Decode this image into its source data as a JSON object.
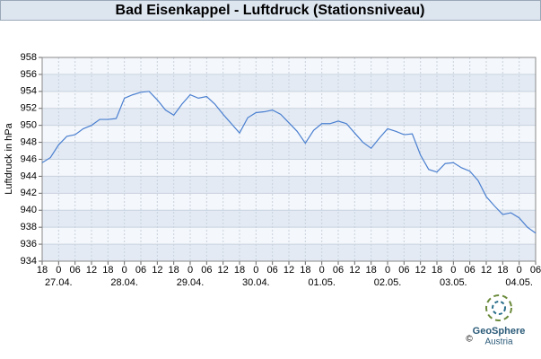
{
  "chart_data": {
    "type": "line",
    "title": "Bad Eisenkappel - Luftdruck (Stationsniveau)",
    "ylabel": "Luftdruck in hPa",
    "logo": {
      "name": "GeoSphere",
      "sub": "Austria",
      "copyright": "©"
    },
    "x": [
      "26.04. 18:00",
      "26.04. 21:00",
      "27.04. 00:00",
      "27.04. 03:00",
      "27.04. 06:00",
      "27.04. 09:00",
      "27.04. 12:00",
      "27.04. 15:00",
      "27.04. 18:00",
      "27.04. 21:00",
      "28.04. 00:00",
      "28.04. 03:00",
      "28.04. 06:00",
      "28.04. 09:00",
      "28.04. 12:00",
      "28.04. 15:00",
      "28.04. 18:00",
      "28.04. 21:00",
      "29.04. 00:00",
      "29.04. 03:00",
      "29.04. 06:00",
      "29.04. 09:00",
      "29.04. 12:00",
      "29.04. 15:00",
      "29.04. 18:00",
      "29.04. 21:00",
      "30.04. 00:00",
      "30.04. 03:00",
      "30.04. 06:00",
      "30.04. 09:00",
      "30.04. 12:00",
      "30.04. 15:00",
      "30.04. 18:00",
      "30.04. 21:00",
      "01.05. 00:00",
      "01.05. 03:00",
      "01.05. 06:00",
      "01.05. 09:00",
      "01.05. 12:00",
      "01.05. 15:00",
      "01.05. 18:00",
      "01.05. 21:00",
      "02.05. 00:00",
      "02.05. 03:00",
      "02.05. 06:00",
      "02.05. 09:00",
      "02.05. 12:00",
      "02.05. 15:00",
      "02.05. 18:00",
      "02.05. 21:00",
      "03.05. 00:00",
      "03.05. 03:00",
      "03.05. 06:00",
      "03.05. 09:00",
      "03.05. 12:00",
      "03.05. 15:00",
      "03.05. 18:00",
      "03.05. 21:00",
      "04.05. 00:00",
      "04.05. 03:00",
      "04.05. 06:00"
    ],
    "series": [
      {
        "name": "Luftdruck",
        "color": "#4a7fd0",
        "values": [
          945.6,
          946.2,
          947.7,
          948.7,
          948.9,
          949.6,
          950.0,
          950.7,
          950.7,
          950.8,
          953.2,
          953.6,
          953.9,
          954.0,
          953.0,
          951.8,
          951.2,
          952.5,
          953.6,
          953.2,
          953.4,
          952.5,
          951.3,
          950.2,
          949.1,
          950.9,
          951.5,
          951.6,
          951.8,
          951.3,
          950.3,
          949.3,
          947.9,
          949.4,
          950.2,
          950.2,
          950.5,
          950.2,
          949.1,
          948.0,
          947.3,
          948.5,
          949.6,
          949.3,
          948.9,
          949.0,
          946.5,
          944.8,
          944.5,
          945.5,
          945.6,
          945.0,
          944.6,
          943.5,
          941.6,
          940.5,
          939.5,
          939.7,
          939.1,
          938.0,
          937.3
        ]
      }
    ],
    "xlim": [
      "26.04. 18:00",
      "04.05. 06:00"
    ],
    "xticks": [
      {
        "value": "26.04. 18:00",
        "label": "18"
      },
      {
        "value": "27.04. 00:00",
        "label": "0"
      },
      {
        "value": "27.04. 06:00",
        "label": "06"
      },
      {
        "value": "27.04. 12:00",
        "label": "12"
      },
      {
        "value": "27.04. 18:00",
        "label": "18"
      },
      {
        "value": "28.04. 00:00",
        "label": "0"
      },
      {
        "value": "28.04. 06:00",
        "label": "06"
      },
      {
        "value": "28.04. 12:00",
        "label": "12"
      },
      {
        "value": "28.04. 18:00",
        "label": "18"
      },
      {
        "value": "29.04. 00:00",
        "label": "0"
      },
      {
        "value": "29.04. 06:00",
        "label": "06"
      },
      {
        "value": "29.04. 12:00",
        "label": "12"
      },
      {
        "value": "29.04. 18:00",
        "label": "18"
      },
      {
        "value": "30.04. 00:00",
        "label": "0"
      },
      {
        "value": "30.04. 06:00",
        "label": "06"
      },
      {
        "value": "30.04. 12:00",
        "label": "12"
      },
      {
        "value": "30.04. 18:00",
        "label": "18"
      },
      {
        "value": "01.05. 00:00",
        "label": "0"
      },
      {
        "value": "01.05. 06:00",
        "label": "06"
      },
      {
        "value": "01.05. 12:00",
        "label": "12"
      },
      {
        "value": "01.05. 18:00",
        "label": "18"
      },
      {
        "value": "02.05. 00:00",
        "label": "0"
      },
      {
        "value": "02.05. 06:00",
        "label": "06"
      },
      {
        "value": "02.05. 12:00",
        "label": "12"
      },
      {
        "value": "02.05. 18:00",
        "label": "18"
      },
      {
        "value": "03.05. 00:00",
        "label": "0"
      },
      {
        "value": "03.05. 06:00",
        "label": "06"
      },
      {
        "value": "03.05. 12:00",
        "label": "12"
      },
      {
        "value": "03.05. 18:00",
        "label": "18"
      },
      {
        "value": "04.05. 00:00",
        "label": "0"
      },
      {
        "value": "04.05. 06:00",
        "label": "06"
      }
    ],
    "date_labels": [
      {
        "value": "27.04. 00:00",
        "label": "27.04."
      },
      {
        "value": "28.04. 00:00",
        "label": "28.04."
      },
      {
        "value": "29.04. 00:00",
        "label": "29.04."
      },
      {
        "value": "30.04. 00:00",
        "label": "30.04."
      },
      {
        "value": "01.05. 00:00",
        "label": "01.05."
      },
      {
        "value": "02.05. 00:00",
        "label": "02.05."
      },
      {
        "value": "03.05. 00:00",
        "label": "03.05."
      },
      {
        "value": "04.05. 00:00",
        "label": "04.05."
      }
    ],
    "ylim": [
      934,
      958
    ],
    "yticks": [
      934,
      936,
      938,
      940,
      942,
      944,
      946,
      948,
      950,
      952,
      954,
      956,
      958
    ],
    "grid": true
  }
}
